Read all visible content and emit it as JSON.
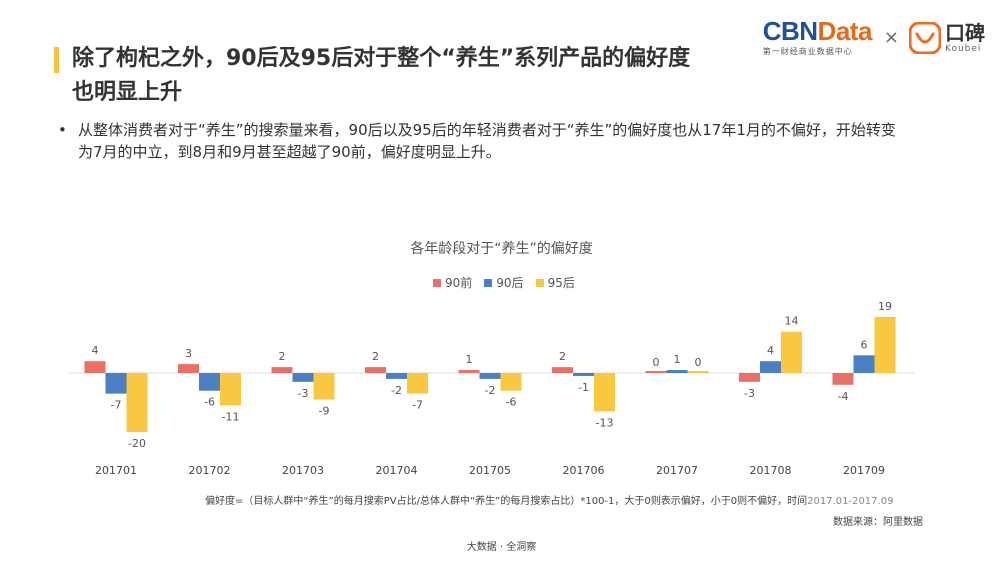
{
  "brand": {
    "cbn_part1": "CBN",
    "cbn_part2": "Data",
    "cbn_sub": "第一财经商业数据中心",
    "times": "×",
    "koubei_cn": "口碑",
    "koubei_en": "Koubei",
    "colors": {
      "cbn_blue": "#1e4fa0",
      "cbn_orange": "#e66a1a",
      "koubei_orange": "#f26b21"
    }
  },
  "title": "除了枸杞之外，90后及95后对于整个“养生”系列产品的偏好度也明显上升",
  "bullet": "从整体消费者对于“养生”的搜索量来看，90后以及95后的年轻消费者对于“养生”的偏好度也从17年1月的不偏好，开始转变为7月的中立，到8月和9月甚至超越了90前，偏好度明显上升。",
  "chart_data": {
    "type": "bar",
    "title": "各年龄段对于“养生”的偏好度",
    "categories": [
      "201701",
      "201702",
      "201703",
      "201704",
      "201705",
      "201706",
      "201707",
      "201708",
      "201709"
    ],
    "series": [
      {
        "name": "90前",
        "color": "#ec6f66",
        "values": [
          4,
          3,
          2,
          2,
          1,
          2,
          0,
          -3,
          -4
        ]
      },
      {
        "name": "90后",
        "color": "#4a80c2",
        "values": [
          -7,
          -6,
          -3,
          -2,
          -2,
          -1,
          1,
          4,
          6
        ]
      },
      {
        "name": "95后",
        "color": "#f7c840",
        "values": [
          -20,
          -11,
          -9,
          -7,
          -6,
          -13,
          0,
          14,
          19
        ]
      }
    ],
    "ylim": [
      -20,
      19
    ],
    "xlabel": "",
    "ylabel": "",
    "grid": false,
    "legend_position": "top-center"
  },
  "footnote": {
    "formula": "偏好度=（目标人群中“养生”的每月搜索PV占比/总体人群中“养生”的每月搜索占比）*100-1，大于0则表示偏好，小于0则不偏好，时间",
    "range": "2017.01-2017.09"
  },
  "source": "数据来源：阿里数据",
  "footer": "大数据 · 全洞察"
}
